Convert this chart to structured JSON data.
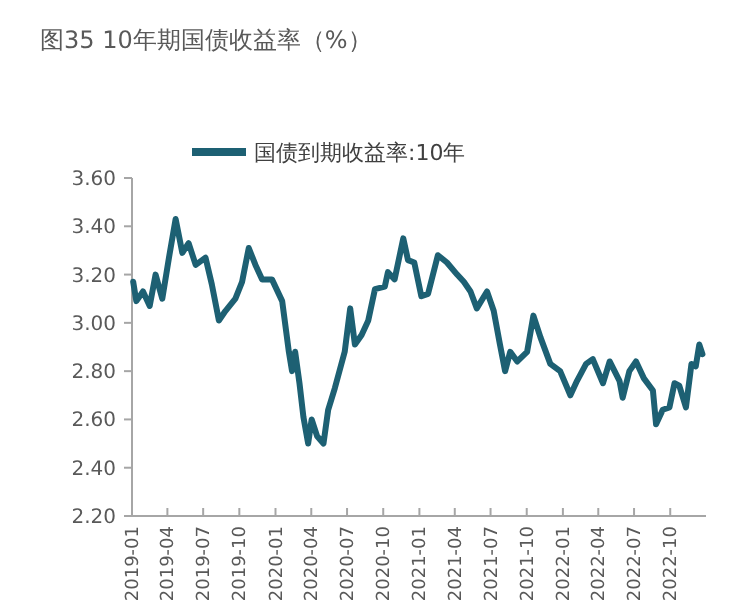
{
  "chart_data": {
    "type": "line",
    "title": "图35 10年期国债收益率（%）",
    "legend": "top",
    "grid": false,
    "line_style": "solid",
    "marker": "none",
    "xlim": [
      "2019-01-01",
      "2022-12-31"
    ],
    "ylim": [
      2.2,
      3.6
    ],
    "yticks": [
      {
        "value": 2.2,
        "label": "2.20"
      },
      {
        "value": 2.4,
        "label": "2.40"
      },
      {
        "value": 2.6,
        "label": "2.60"
      },
      {
        "value": 2.8,
        "label": "2.80"
      },
      {
        "value": 3.0,
        "label": "3.00"
      },
      {
        "value": 3.2,
        "label": "3.20"
      },
      {
        "value": 3.4,
        "label": "3.40"
      },
      {
        "value": 3.6,
        "label": "3.60"
      }
    ],
    "xticks": [
      {
        "value": "2019-01",
        "label": "2019-01"
      },
      {
        "value": "2019-04",
        "label": "2019-04"
      },
      {
        "value": "2019-07",
        "label": "2019-07"
      },
      {
        "value": "2019-10",
        "label": "2019-10"
      },
      {
        "value": "2020-01",
        "label": "2020-01"
      },
      {
        "value": "2020-04",
        "label": "2020-04"
      },
      {
        "value": "2020-07",
        "label": "2020-07"
      },
      {
        "value": "2020-10",
        "label": "2020-10"
      },
      {
        "value": "2021-01",
        "label": "2021-01"
      },
      {
        "value": "2021-04",
        "label": "2021-04"
      },
      {
        "value": "2021-07",
        "label": "2021-07"
      },
      {
        "value": "2021-10",
        "label": "2021-10"
      },
      {
        "value": "2022-01",
        "label": "2022-01"
      },
      {
        "value": "2022-04",
        "label": "2022-04"
      },
      {
        "value": "2022-07",
        "label": "2022-07"
      },
      {
        "value": "2022-10",
        "label": "2022-10"
      }
    ],
    "series": [
      {
        "name": "国债到期收益率:10年",
        "color": "#1d6073",
        "x": [
          "2019-01-04",
          "2019-01-12",
          "2019-01-29",
          "2019-02-15",
          "2019-03-02",
          "2019-03-19",
          "2019-04-05",
          "2019-04-22",
          "2019-05-09",
          "2019-05-25",
          "2019-06-12",
          "2019-07-07",
          "2019-07-23",
          "2019-08-10",
          "2019-08-27",
          "2019-09-21",
          "2019-10-08",
          "2019-10-25",
          "2019-11-11",
          "2019-11-28",
          "2019-12-23",
          "2020-01-18",
          "2020-02-04",
          "2020-02-12",
          "2020-02-20",
          "2020-03-02",
          "2020-03-12",
          "2020-03-24",
          "2020-04-02",
          "2020-04-16",
          "2020-05-02",
          "2020-05-14",
          "2020-05-31",
          "2020-06-25",
          "2020-07-09",
          "2020-07-21",
          "2020-08-07",
          "2020-08-24",
          "2020-09-10",
          "2020-10-05",
          "2020-10-13",
          "2020-10-30",
          "2020-11-21",
          "2020-12-03",
          "2020-12-19",
          "2021-01-06",
          "2021-01-23",
          "2021-02-17",
          "2021-03-12",
          "2021-04-07",
          "2021-04-24",
          "2021-05-11",
          "2021-05-27",
          "2021-06-22",
          "2021-07-09",
          "2021-07-25",
          "2021-08-07",
          "2021-08-20",
          "2021-09-07",
          "2021-10-02",
          "2021-10-18",
          "2021-11-05",
          "2021-11-30",
          "2021-12-25",
          "2022-01-20",
          "2022-02-06",
          "2022-03-01",
          "2022-03-18",
          "2022-04-13",
          "2022-04-30",
          "2022-05-25",
          "2022-06-02",
          "2022-06-19",
          "2022-07-06",
          "2022-07-26",
          "2022-08-18",
          "2022-08-26",
          "2022-09-12",
          "2022-09-29",
          "2022-10-12",
          "2022-10-24",
          "2022-11-10",
          "2022-11-24",
          "2022-12-05",
          "2022-12-14",
          "2022-12-22"
        ],
        "values": [
          3.17,
          3.09,
          3.13,
          3.07,
          3.2,
          3.1,
          3.27,
          3.43,
          3.29,
          3.33,
          3.24,
          3.27,
          3.16,
          3.01,
          3.05,
          3.1,
          3.17,
          3.31,
          3.24,
          3.18,
          3.18,
          3.09,
          2.88,
          2.8,
          2.88,
          2.75,
          2.61,
          2.5,
          2.6,
          2.53,
          2.5,
          2.64,
          2.73,
          2.88,
          3.06,
          2.91,
          2.95,
          3.01,
          3.14,
          3.15,
          3.21,
          3.18,
          3.35,
          3.26,
          3.25,
          3.11,
          3.12,
          3.28,
          3.25,
          3.2,
          3.17,
          3.13,
          3.06,
          3.13,
          3.05,
          2.91,
          2.8,
          2.88,
          2.84,
          2.88,
          3.03,
          2.94,
          2.83,
          2.8,
          2.7,
          2.76,
          2.83,
          2.85,
          2.75,
          2.84,
          2.76,
          2.69,
          2.8,
          2.84,
          2.77,
          2.72,
          2.58,
          2.64,
          2.65,
          2.75,
          2.74,
          2.65,
          2.83,
          2.82,
          2.91,
          2.87
        ]
      }
    ]
  }
}
